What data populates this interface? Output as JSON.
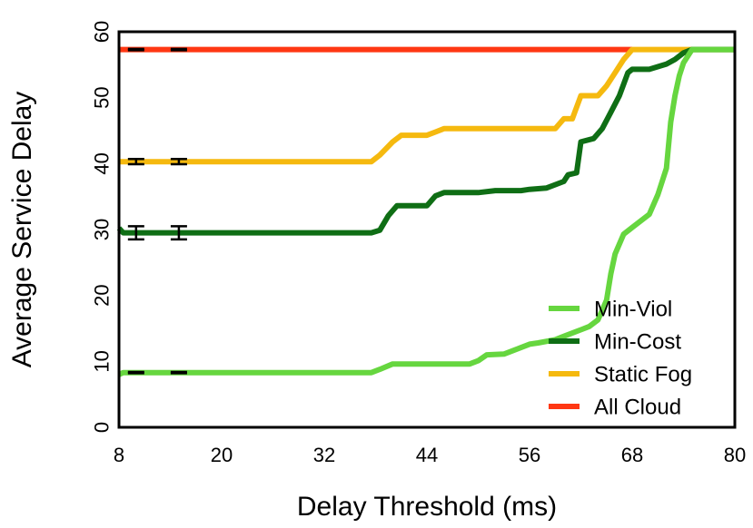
{
  "chart_data": {
    "type": "line",
    "title": "",
    "xlabel": "Delay Threshold (ms)",
    "ylabel": "Average Service Delay",
    "xlim": [
      8,
      80
    ],
    "ylim": [
      0,
      60
    ],
    "xticks": [
      8,
      20,
      32,
      44,
      56,
      68,
      80
    ],
    "yticks": [
      0,
      10,
      20,
      30,
      40,
      50,
      60
    ],
    "grid": false,
    "legend_position": "bottom-right",
    "series": [
      {
        "name": "Min-Viol",
        "color": "#66d63f",
        "x": [
          8,
          8.5,
          37.5,
          38.5,
          40,
          49,
          50,
          51,
          53,
          54,
          55,
          56,
          57,
          59,
          60,
          62,
          63,
          64,
          65,
          65.5,
          66,
          66.5,
          67,
          68,
          70,
          71,
          72,
          72.5,
          73,
          73.5,
          74,
          75,
          80
        ],
        "y": [
          8,
          8.3,
          8.3,
          8.8,
          9.6,
          9.6,
          10.1,
          11.0,
          11.1,
          11.6,
          12.1,
          12.6,
          12.8,
          13.3,
          13.8,
          14.8,
          15.3,
          16.3,
          19.3,
          23.3,
          26.3,
          27.8,
          29.3,
          30.3,
          32.3,
          35.3,
          39.3,
          46.3,
          50.3,
          53.3,
          55.3,
          57.3,
          57.3
        ]
      },
      {
        "name": "Min-Cost",
        "color": "#0f6e15",
        "x": [
          8,
          8.5,
          37.5,
          38.5,
          39.5,
          40.5,
          44,
          45,
          46,
          50,
          52,
          55,
          56,
          58,
          60,
          60.5,
          61.5,
          62,
          63.5,
          64.5,
          65.5,
          66.5,
          67.5,
          68,
          70,
          72,
          73,
          74,
          75,
          80
        ],
        "y": [
          30.2,
          29.5,
          29.5,
          29.9,
          32.1,
          33.6,
          33.6,
          35.1,
          35.6,
          35.6,
          35.9,
          35.9,
          36.1,
          36.3,
          37.3,
          38.3,
          38.6,
          43.3,
          43.8,
          45.3,
          47.8,
          50.3,
          53.8,
          54.3,
          54.3,
          55.1,
          55.8,
          56.8,
          57.3,
          57.3
        ]
      },
      {
        "name": "Static Fog",
        "color": "#f5b90f",
        "x": [
          8,
          37.5,
          38.5,
          40,
          41,
          44,
          45,
          46,
          59,
          60,
          61,
          62,
          63,
          64,
          65,
          66,
          67,
          68,
          80
        ],
        "y": [
          40.3,
          40.3,
          41.3,
          43.3,
          44.3,
          44.3,
          44.8,
          45.3,
          45.3,
          46.8,
          46.8,
          50.3,
          50.3,
          50.3,
          51.8,
          53.8,
          55.8,
          57.3,
          57.3
        ]
      },
      {
        "name": "All Cloud",
        "color": "#ff3713",
        "x": [
          8,
          68
        ],
        "y": [
          57.3,
          57.3
        ]
      }
    ],
    "error_bars": [
      {
        "x": 10,
        "y": 8.3,
        "err": 0.1
      },
      {
        "x": 15,
        "y": 8.3,
        "err": 0.1
      },
      {
        "x": 10,
        "y": 29.5,
        "err": 1.0
      },
      {
        "x": 15,
        "y": 29.5,
        "err": 1.0
      },
      {
        "x": 10,
        "y": 40.3,
        "err": 0.4
      },
      {
        "x": 15,
        "y": 40.3,
        "err": 0.4
      },
      {
        "x": 10,
        "y": 57.3,
        "err": 0.1
      },
      {
        "x": 15,
        "y": 57.3,
        "err": 0.1
      }
    ]
  }
}
